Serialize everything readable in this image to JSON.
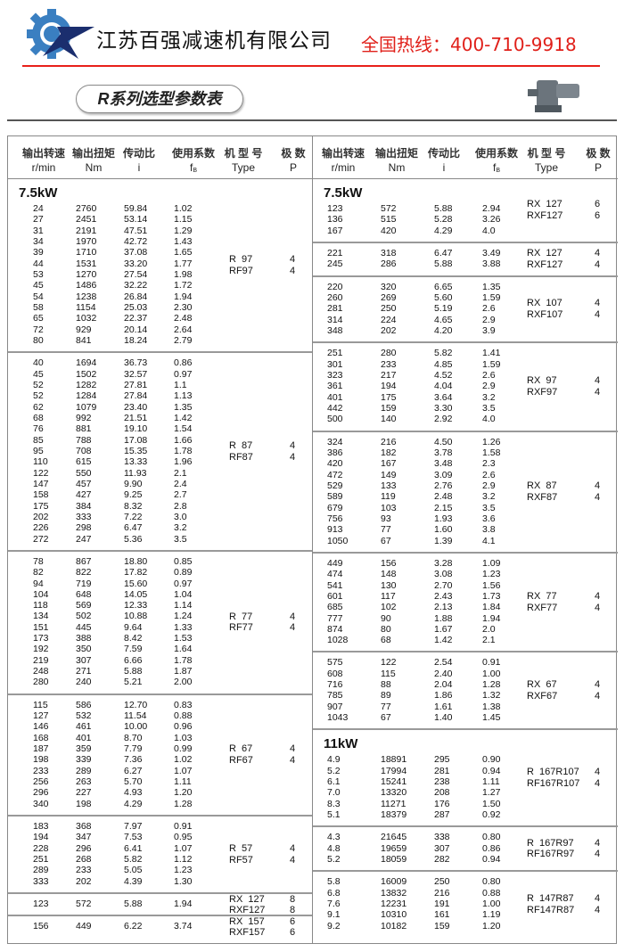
{
  "header": {
    "company": "江苏百强减速机有限公司",
    "hotline": "全国热线：400-710-9918",
    "title": "R系列选型参数表",
    "logo_icon": "gear-star-logo-icon",
    "colors": {
      "brand_blue": "#3a7fc1",
      "hotline_red": "#e0201a"
    }
  },
  "columns": [
    {
      "cn": "输出转速",
      "unit": "r/min"
    },
    {
      "cn": "输出扭矩",
      "unit": "Nm"
    },
    {
      "cn": "传动比",
      "unit": "i"
    },
    {
      "cn": "使用系数",
      "unit": "f",
      "unit_sub": "B"
    },
    {
      "cn": "机 型 号",
      "unit": "Type"
    },
    {
      "cn": "极  数",
      "unit": "P"
    }
  ],
  "left": {
    "groups": [
      {
        "power": "7.5kW",
        "types": [
          "R  97",
          "RF97"
        ],
        "poles": [
          "4",
          "4"
        ],
        "rows": [
          [
            "24",
            "2760",
            "59.84",
            "1.02"
          ],
          [
            "27",
            "2451",
            "53.14",
            "1.15"
          ],
          [
            "31",
            "2191",
            "47.51",
            "1.29"
          ],
          [
            "34",
            "1970",
            "42.72",
            "1.43"
          ],
          [
            "39",
            "1710",
            "37.08",
            "1.65"
          ],
          [
            "44",
            "1531",
            "33.20",
            "1.77"
          ],
          [
            "53",
            "1270",
            "27.54",
            "1.98"
          ],
          [
            "45",
            "1486",
            "32.22",
            "1.72"
          ],
          [
            "54",
            "1238",
            "26.84",
            "1.94"
          ],
          [
            "58",
            "1154",
            "25.03",
            "2.30"
          ],
          [
            "65",
            "1032",
            "22.37",
            "2.48"
          ],
          [
            "72",
            "929",
            "20.14",
            "2.64"
          ],
          [
            "80",
            "841",
            "18.24",
            "2.79"
          ]
        ]
      },
      {
        "types": [
          "R  87",
          "RF87"
        ],
        "poles": [
          "4",
          "4"
        ],
        "rows": [
          [
            "40",
            "1694",
            "36.73",
            "0.86"
          ],
          [
            "45",
            "1502",
            "32.57",
            "0.97"
          ],
          [
            "52",
            "1282",
            "27.81",
            "1.1"
          ],
          [
            "52",
            "1284",
            "27.84",
            "1.13"
          ],
          [
            "62",
            "1079",
            "23.40",
            "1.35"
          ],
          [
            "68",
            "992",
            "21.51",
            "1.42"
          ],
          [
            "76",
            "881",
            "19.10",
            "1.54"
          ],
          [
            "85",
            "788",
            "17.08",
            "1.66"
          ],
          [
            "95",
            "708",
            "15.35",
            "1.78"
          ],
          [
            "110",
            "615",
            "13.33",
            "1.96"
          ],
          [
            "122",
            "550",
            "11.93",
            "2.1"
          ],
          [
            "147",
            "457",
            "9.90",
            "2.4"
          ],
          [
            "158",
            "427",
            "9.25",
            "2.7"
          ],
          [
            "175",
            "384",
            "8.32",
            "2.8"
          ],
          [
            "202",
            "333",
            "7.22",
            "3.0"
          ],
          [
            "226",
            "298",
            "6.47",
            "3.2"
          ],
          [
            "272",
            "247",
            "5.36",
            "3.5"
          ]
        ]
      },
      {
        "types": [
          "R  77",
          "RF77"
        ],
        "poles": [
          "4",
          "4"
        ],
        "rows": [
          [
            "78",
            "867",
            "18.80",
            "0.85"
          ],
          [
            "82",
            "822",
            "17.82",
            "0.89"
          ],
          [
            "94",
            "719",
            "15.60",
            "0.97"
          ],
          [
            "104",
            "648",
            "14.05",
            "1.04"
          ],
          [
            "118",
            "569",
            "12.33",
            "1.14"
          ],
          [
            "134",
            "502",
            "10.88",
            "1.24"
          ],
          [
            "151",
            "445",
            "9.64",
            "1.33"
          ],
          [
            "173",
            "388",
            "8.42",
            "1.53"
          ],
          [
            "192",
            "350",
            "7.59",
            "1.64"
          ],
          [
            "219",
            "307",
            "6.66",
            "1.78"
          ],
          [
            "248",
            "271",
            "5.88",
            "1.87"
          ],
          [
            "280",
            "240",
            "5.21",
            "2.00"
          ]
        ]
      },
      {
        "types": [
          "R  67",
          "RF67"
        ],
        "poles": [
          "4",
          "4"
        ],
        "rows": [
          [
            "115",
            "586",
            "12.70",
            "0.83"
          ],
          [
            "127",
            "532",
            "11.54",
            "0.88"
          ],
          [
            "146",
            "461",
            "10.00",
            "0.96"
          ],
          [
            "168",
            "401",
            "8.70",
            "1.03"
          ],
          [
            "187",
            "359",
            "7.79",
            "0.99"
          ],
          [
            "198",
            "339",
            "7.36",
            "1.02"
          ],
          [
            "233",
            "289",
            "6.27",
            "1.07"
          ],
          [
            "256",
            "263",
            "5.70",
            "1.11"
          ],
          [
            "296",
            "227",
            "4.93",
            "1.20"
          ],
          [
            "340",
            "198",
            "4.29",
            "1.28"
          ]
        ]
      },
      {
        "types": [
          "R  57",
          "RF57"
        ],
        "poles": [
          "4",
          "4"
        ],
        "rows": [
          [
            "183",
            "368",
            "7.97",
            "0.91"
          ],
          [
            "194",
            "347",
            "7.53",
            "0.95"
          ],
          [
            "228",
            "296",
            "6.41",
            "1.07"
          ],
          [
            "251",
            "268",
            "5.82",
            "1.12"
          ],
          [
            "289",
            "233",
            "5.05",
            "1.23"
          ],
          [
            "333",
            "202",
            "4.39",
            "1.30"
          ]
        ]
      },
      {
        "types": [
          "RX  127",
          "RXF127"
        ],
        "poles": [
          "8",
          "8"
        ],
        "rows": [
          [
            "123",
            "572",
            "5.88",
            "1.94"
          ]
        ]
      },
      {
        "types": [
          "RX  157",
          "RXF157"
        ],
        "poles": [
          "6",
          "6"
        ],
        "rows": [
          [
            "156",
            "449",
            "6.22",
            "3.74"
          ]
        ]
      }
    ]
  },
  "right": {
    "groups": [
      {
        "power": "7.5kW",
        "types": [
          "RX  127",
          "RXF127"
        ],
        "poles": [
          "6",
          "6"
        ],
        "rows": [
          [
            "123",
            "572",
            "5.88",
            "2.94"
          ],
          [
            "136",
            "515",
            "5.28",
            "3.26"
          ],
          [
            "167",
            "420",
            "4.29",
            "4.0"
          ]
        ]
      },
      {
        "types": [
          "RX  127",
          "RXF127"
        ],
        "poles": [
          "4",
          "4"
        ],
        "rows": [
          [
            "221",
            "318",
            "6.47",
            "3.49"
          ],
          [
            "245",
            "286",
            "5.88",
            "3.88"
          ]
        ]
      },
      {
        "types": [
          "RX  107",
          "RXF107"
        ],
        "poles": [
          "4",
          "4"
        ],
        "rows": [
          [
            "220",
            "320",
            "6.65",
            "1.35"
          ],
          [
            "260",
            "269",
            "5.60",
            "1.59"
          ],
          [
            "281",
            "250",
            "5.19",
            "2.6"
          ],
          [
            "314",
            "224",
            "4.65",
            "2.9"
          ],
          [
            "348",
            "202",
            "4.20",
            "3.9"
          ]
        ]
      },
      {
        "types": [
          "RX  97",
          "RXF97"
        ],
        "poles": [
          "4",
          "4"
        ],
        "rows": [
          [
            "251",
            "280",
            "5.82",
            "1.41"
          ],
          [
            "301",
            "233",
            "4.85",
            "1.59"
          ],
          [
            "323",
            "217",
            "4.52",
            "2.6"
          ],
          [
            "361",
            "194",
            "4.04",
            "2.9"
          ],
          [
            "401",
            "175",
            "3.64",
            "3.2"
          ],
          [
            "442",
            "159",
            "3.30",
            "3.5"
          ],
          [
            "500",
            "140",
            "2.92",
            "4.0"
          ]
        ]
      },
      {
        "types": [
          "RX  87",
          "RXF87"
        ],
        "poles": [
          "4",
          "4"
        ],
        "rows": [
          [
            "324",
            "216",
            "4.50",
            "1.26"
          ],
          [
            "386",
            "182",
            "3.78",
            "1.58"
          ],
          [
            "420",
            "167",
            "3.48",
            "2.3"
          ],
          [
            "472",
            "149",
            "3.09",
            "2.6"
          ],
          [
            "529",
            "133",
            "2.76",
            "2.9"
          ],
          [
            "589",
            "119",
            "2.48",
            "3.2"
          ],
          [
            "679",
            "103",
            "2.15",
            "3.5"
          ],
          [
            "756",
            "93",
            "1.93",
            "3.6"
          ],
          [
            "913",
            "77",
            "1.60",
            "3.8"
          ],
          [
            "1050",
            "67",
            "1.39",
            "4.1"
          ]
        ]
      },
      {
        "types": [
          "RX  77",
          "RXF77"
        ],
        "poles": [
          "4",
          "4"
        ],
        "rows": [
          [
            "449",
            "156",
            "3.28",
            "1.09"
          ],
          [
            "474",
            "148",
            "3.08",
            "1.23"
          ],
          [
            "541",
            "130",
            "2.70",
            "1.56"
          ],
          [
            "601",
            "117",
            "2.43",
            "1.73"
          ],
          [
            "685",
            "102",
            "2.13",
            "1.84"
          ],
          [
            "777",
            "90",
            "1.88",
            "1.94"
          ],
          [
            "874",
            "80",
            "1.67",
            "2.0"
          ],
          [
            "1028",
            "68",
            "1.42",
            "2.1"
          ]
        ]
      },
      {
        "types": [
          "RX  67",
          "RXF67"
        ],
        "poles": [
          "4",
          "4"
        ],
        "rows": [
          [
            "575",
            "122",
            "2.54",
            "0.91"
          ],
          [
            "608",
            "115",
            "2.40",
            "1.00"
          ],
          [
            "716",
            "88",
            "2.04",
            "1.28"
          ],
          [
            "785",
            "89",
            "1.86",
            "1.32"
          ],
          [
            "907",
            "77",
            "1.61",
            "1.38"
          ],
          [
            "1043",
            "67",
            "1.40",
            "1.45"
          ]
        ]
      },
      {
        "power": "11kW",
        "types": [
          "R  167R107",
          "RF167R107"
        ],
        "poles": [
          "4",
          "4"
        ],
        "rows": [
          [
            "4.9",
            "18891",
            "295",
            "0.90"
          ],
          [
            "5.2",
            "17994",
            "281",
            "0.94"
          ],
          [
            "6.1",
            "15241",
            "238",
            "1.11"
          ],
          [
            "7.0",
            "13320",
            "208",
            "1.27"
          ],
          [
            "8.3",
            "11271",
            "176",
            "1.50"
          ],
          [
            "5.1",
            "18379",
            "287",
            "0.92"
          ]
        ]
      },
      {
        "types": [
          "R  167R97",
          "RF167R97"
        ],
        "poles": [
          "4",
          "4"
        ],
        "rows": [
          [
            "4.3",
            "21645",
            "338",
            "0.80"
          ],
          [
            "4.8",
            "19659",
            "307",
            "0.86"
          ],
          [
            "5.2",
            "18059",
            "282",
            "0.94"
          ]
        ]
      },
      {
        "types": [
          "R  147R87",
          "RF147R87"
        ],
        "poles": [
          "4",
          "4"
        ],
        "rows": [
          [
            "5.8",
            "16009",
            "250",
            "0.80"
          ],
          [
            "6.8",
            "13832",
            "216",
            "0.88"
          ],
          [
            "7.6",
            "12231",
            "191",
            "1.00"
          ],
          [
            "9.1",
            "10310",
            "161",
            "1.19"
          ],
          [
            "9.2",
            "10182",
            "159",
            "1.20"
          ]
        ]
      }
    ]
  }
}
